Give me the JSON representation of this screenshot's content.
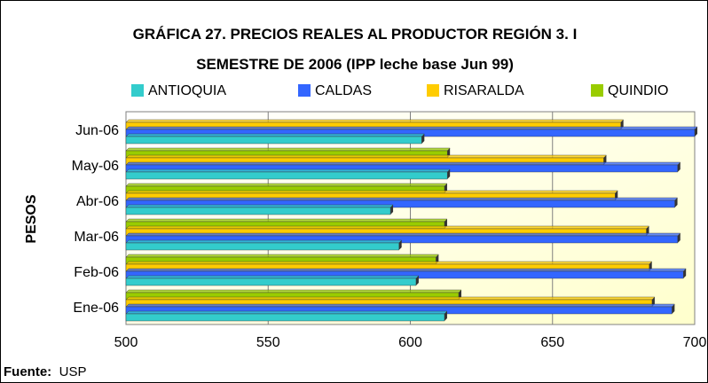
{
  "chart_data": {
    "type": "bar",
    "orientation": "horizontal",
    "title_line1": "GRÁFICA 27. PRECIOS REALES AL PRODUCTOR REGIÓN 3.  I",
    "title_line2": "SEMESTRE DE 2006 (IPP leche base Jun 99)",
    "ylabel": "PESOS",
    "xlabel": "",
    "xlim": [
      500,
      700
    ],
    "xticks": [
      500,
      550,
      600,
      650,
      700
    ],
    "categories": [
      "Ene-06",
      "Feb-06",
      "Mar-06",
      "Abr-06",
      "May-06",
      "Jun-06"
    ],
    "series": [
      {
        "name": "ANTIOQUIA",
        "color": "#33CCCC",
        "values": [
          612,
          602,
          596,
          593,
          613,
          604
        ]
      },
      {
        "name": "CALDAS",
        "color": "#3366FF",
        "values": [
          692,
          696,
          694,
          693,
          694,
          700
        ]
      },
      {
        "name": "RISARALDA",
        "color": "#FFCC00",
        "values": [
          685,
          684,
          683,
          672,
          668,
          674
        ]
      },
      {
        "name": "QUINDIO",
        "color": "#99CC00",
        "values": [
          617,
          609,
          612,
          612,
          613,
          null
        ]
      }
    ],
    "grid": true,
    "legend_position": "top",
    "plot_background": "#FFFFCC"
  },
  "source": {
    "label": "Fuente:",
    "text": "USP"
  }
}
